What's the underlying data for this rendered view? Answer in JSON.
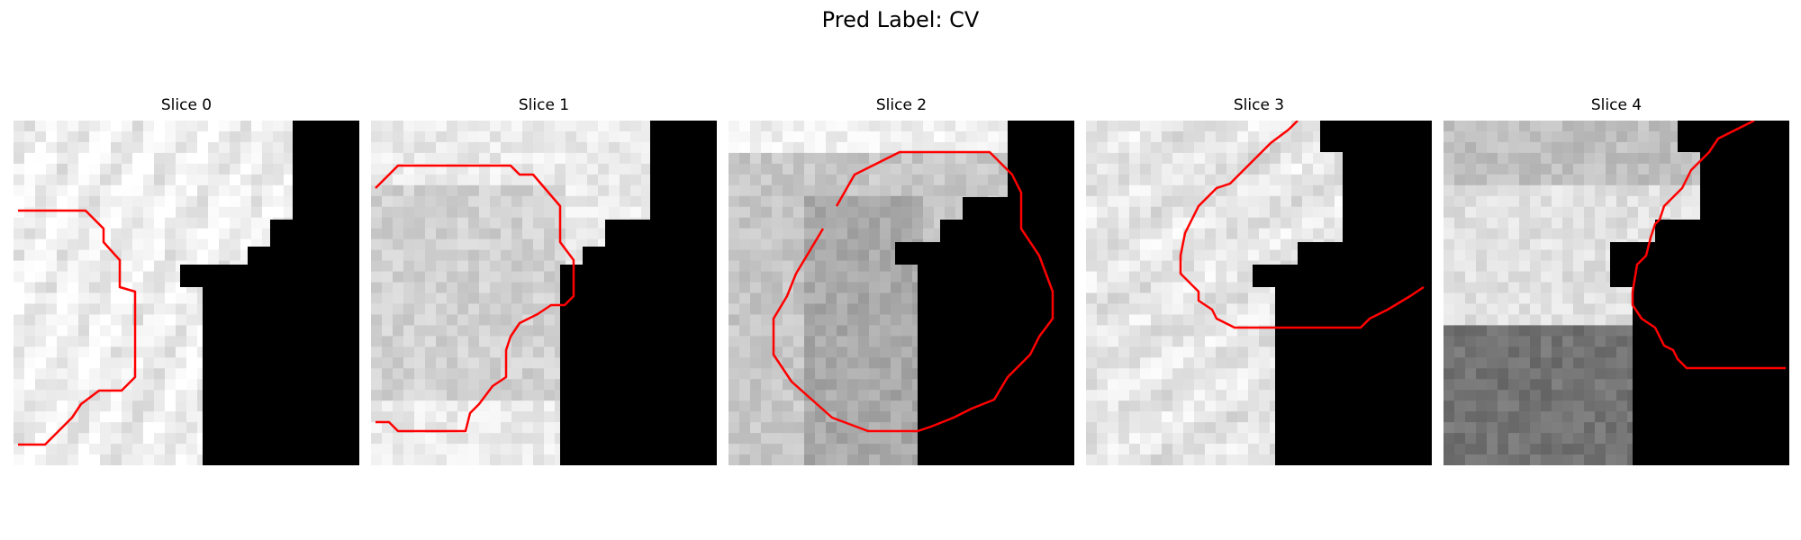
{
  "figure": {
    "title": "Pred Label: CV"
  },
  "panels": [
    {
      "title": "Slice 0",
      "grid": 32
    },
    {
      "title": "Slice 1",
      "grid": 32
    },
    {
      "title": "Slice 2",
      "grid": 32
    },
    {
      "title": "Slice 3",
      "grid": 32
    },
    {
      "title": "Slice 4",
      "grid": 32
    }
  ],
  "colors": {
    "contour": "#ff0000",
    "mask": "#000000"
  }
}
